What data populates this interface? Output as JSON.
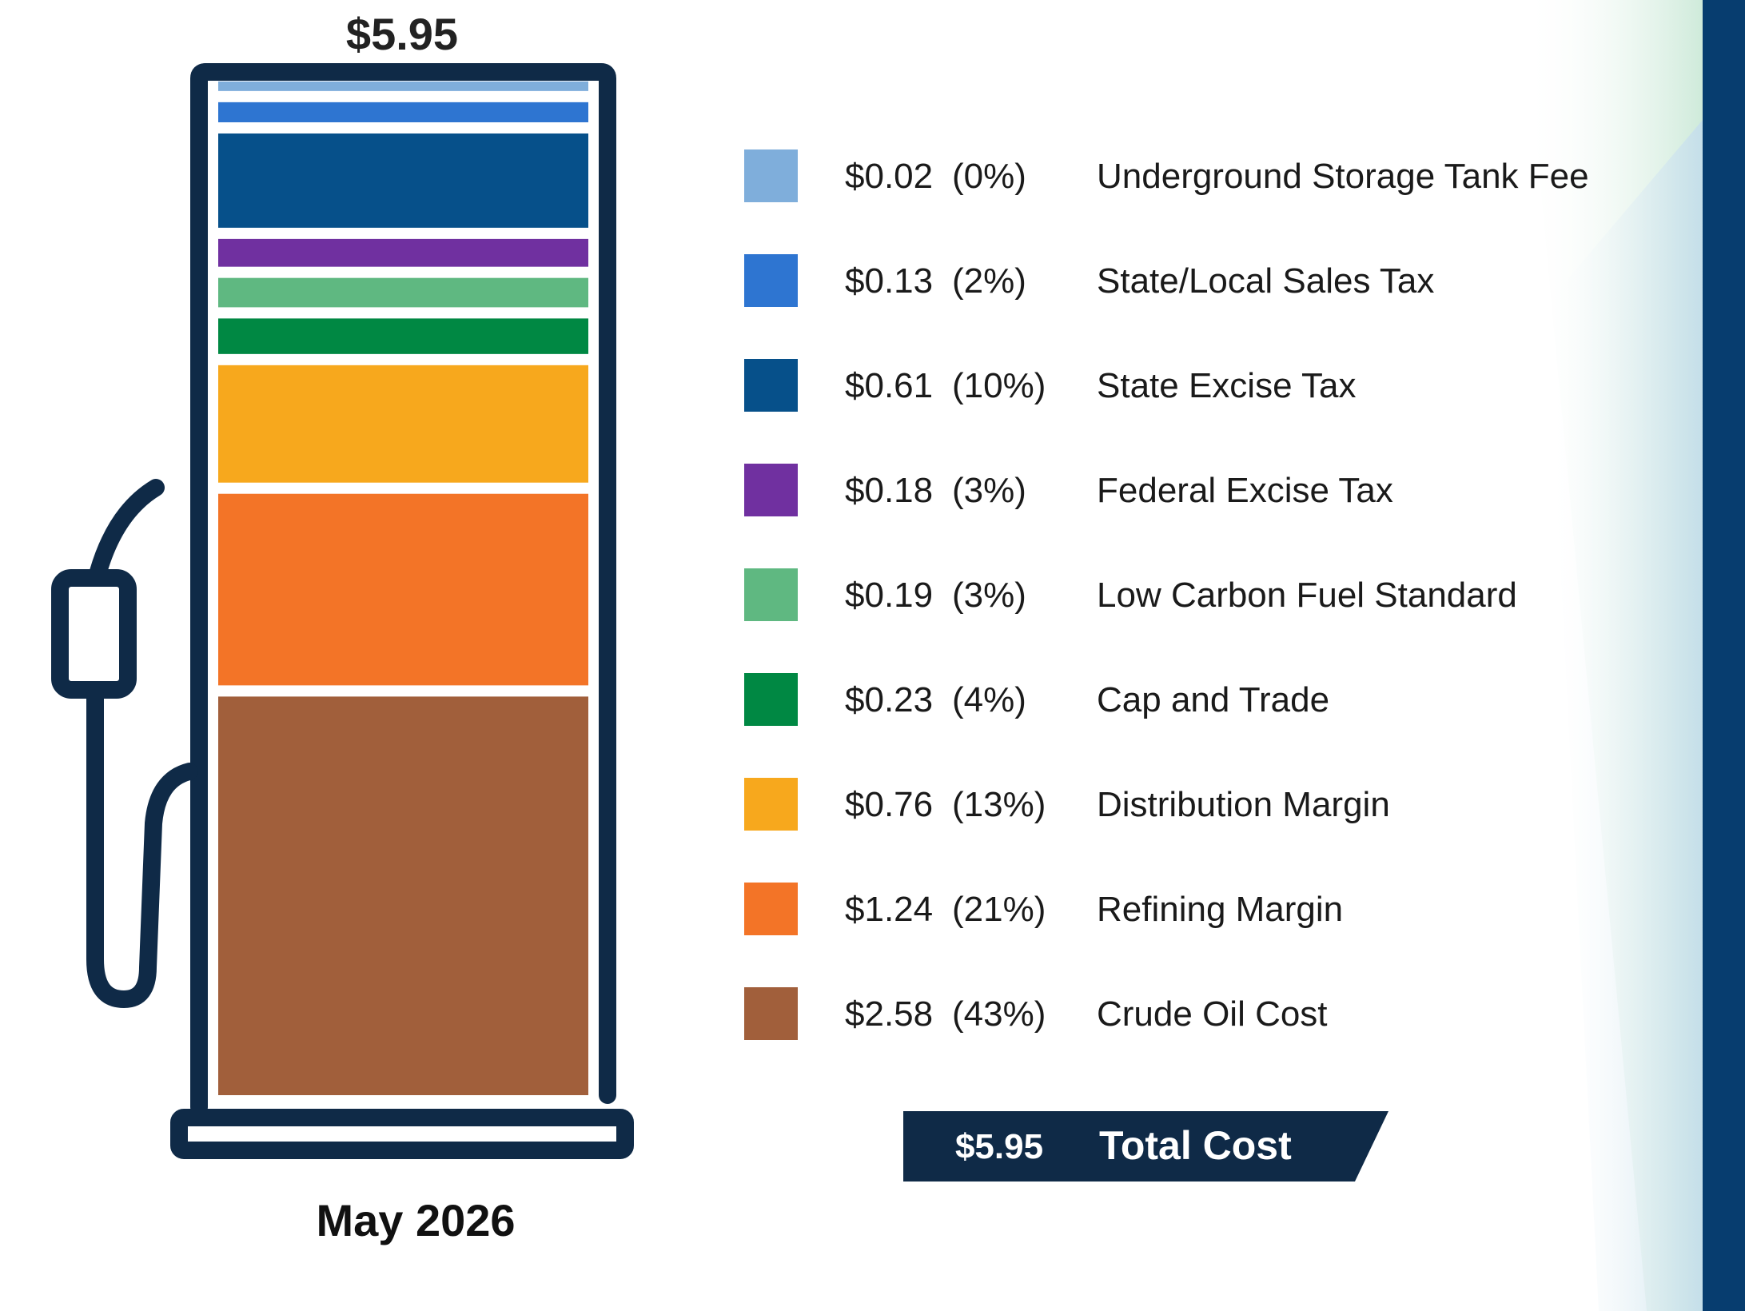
{
  "chart_data": {
    "type": "bar",
    "title": "$5.95",
    "period": "May 2026",
    "categories": [
      "Crude Oil Cost",
      "Refining Margin",
      "Distribution Margin",
      "Cap and Trade",
      "Low Carbon Fuel Standard",
      "Federal Excise Tax",
      "State Excise Tax",
      "State/Local Sales Tax",
      "Underground Storage Tank Fee"
    ],
    "series": [
      {
        "values": [
          2.58,
          1.24,
          0.76,
          0.23,
          0.19,
          0.18,
          0.61,
          0.13,
          0.02
        ]
      }
    ],
    "legend": [
      {
        "value": "$0.02",
        "percent": "(0%)",
        "label": "Underground Storage Tank Fee",
        "color": "#7FAEDB"
      },
      {
        "value": "$0.13",
        "percent": "(2%)",
        "label": "State/Local Sales Tax",
        "color": "#2E75D1"
      },
      {
        "value": "$0.61",
        "percent": "(10%)",
        "label": "State Excise Tax",
        "color": "#06508A"
      },
      {
        "value": "$0.18",
        "percent": "(3%)",
        "label": "Federal Excise Tax",
        "color": "#7030A0"
      },
      {
        "value": "$0.19",
        "percent": "(3%)",
        "label": "Low Carbon Fuel Standard",
        "color": "#5FB881"
      },
      {
        "value": "$0.23",
        "percent": "(4%)",
        "label": "Cap and Trade",
        "color": "#008843"
      },
      {
        "value": "$0.76",
        "percent": "(13%)",
        "label": "Distribution Margin",
        "color": "#F7A81D"
      },
      {
        "value": "$1.24",
        "percent": "(21%)",
        "label": "Refining Margin",
        "color": "#F37427"
      },
      {
        "value": "$2.58",
        "percent": "(43%)",
        "label": "Crude Oil Cost",
        "color": "#A15F3B"
      }
    ],
    "total": {
      "value": "$5.95",
      "label": "Total Cost"
    },
    "legend_placement": "right",
    "grid": false
  },
  "colors": {
    "outline": "#0F2A47",
    "total_bg": "#0F2A47",
    "right_bar": "#073D6F",
    "text": "#1A1A1A",
    "total_text": "#FFFFFF"
  }
}
